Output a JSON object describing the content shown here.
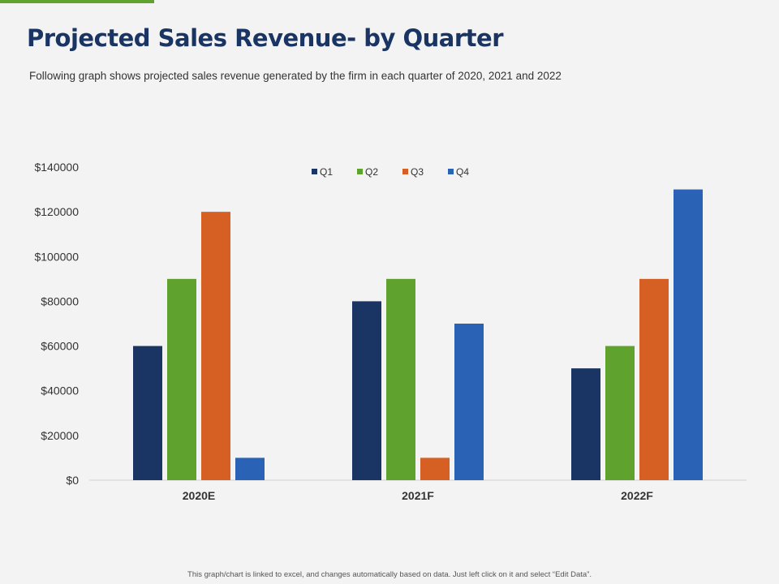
{
  "title": "Projected Sales Revenue- by Quarter",
  "subtitle": "Following graph shows projected sales revenue generated by the firm in each quarter of 2020, 2021 and 2022",
  "footer": "This graph/chart is linked to excel, and changes automatically based on data. Just left click on it and select “Edit Data”.",
  "accent_color": "#5fa22e",
  "chart_data": {
    "type": "bar",
    "categories": [
      "2020E",
      "2021F",
      "2022F"
    ],
    "series": [
      {
        "name": "Q1",
        "color": "#1a3563",
        "values": [
          60000,
          80000,
          50000
        ]
      },
      {
        "name": "Q2",
        "color": "#5fa22e",
        "values": [
          90000,
          90000,
          60000
        ]
      },
      {
        "name": "Q3",
        "color": "#d66024",
        "values": [
          120000,
          10000,
          90000
        ]
      },
      {
        "name": "Q4",
        "color": "#2a62b5",
        "values": [
          10000,
          70000,
          130000
        ]
      }
    ],
    "ylim": [
      0,
      140000
    ],
    "yticks": [
      "$0",
      "$20000",
      "$40000",
      "$60000",
      "$80000",
      "$100000",
      "$120000",
      "$140000"
    ],
    "ytick_values": [
      0,
      20000,
      40000,
      60000,
      80000,
      100000,
      120000,
      140000
    ],
    "grid": false,
    "legend": "top-center"
  }
}
